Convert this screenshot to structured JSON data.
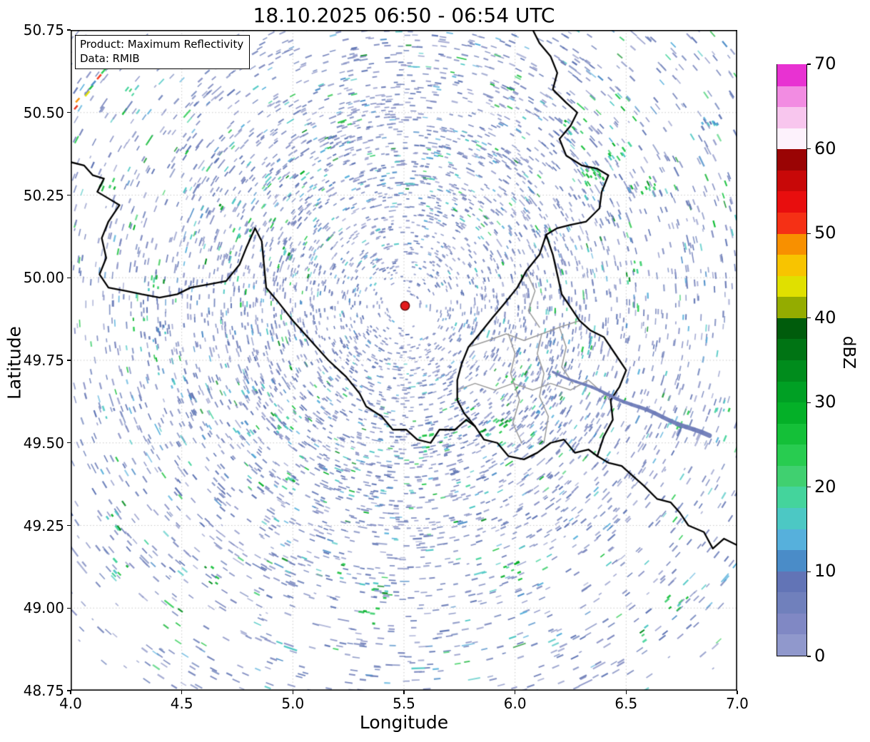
{
  "annotation": {
    "product": "Product: Maximum Reflectivity",
    "source": "Data: RMIB"
  },
  "chart_data": {
    "type": "heatmap",
    "title": "18.10.2025 06:50 - 06:54 UTC",
    "xlabel": "Longitude",
    "ylabel": "Latitude",
    "xlim": [
      4.0,
      7.0
    ],
    "ylim": [
      48.75,
      50.75
    ],
    "grid": "dotted",
    "xticks": [
      {
        "v": 4.0,
        "label": "4.0"
      },
      {
        "v": 4.5,
        "label": "4.5"
      },
      {
        "v": 5.0,
        "label": "5.0"
      },
      {
        "v": 5.5,
        "label": "5.5"
      },
      {
        "v": 6.0,
        "label": "6.0"
      },
      {
        "v": 6.5,
        "label": "6.5"
      },
      {
        "v": 7.0,
        "label": "7.0"
      }
    ],
    "yticks": [
      {
        "v": 48.75,
        "label": "48.75"
      },
      {
        "v": 49.0,
        "label": "49.00"
      },
      {
        "v": 49.25,
        "label": "49.25"
      },
      {
        "v": 49.5,
        "label": "49.50"
      },
      {
        "v": 49.75,
        "label": "49.75"
      },
      {
        "v": 50.0,
        "label": "50.00"
      },
      {
        "v": 50.25,
        "label": "50.25"
      },
      {
        "v": 50.5,
        "label": "50.50"
      },
      {
        "v": 50.75,
        "label": "50.75"
      }
    ],
    "colorbar": {
      "label": "dBZ",
      "min": 0,
      "max": 70,
      "ticks": [
        {
          "v": 0,
          "label": "0"
        },
        {
          "v": 10,
          "label": "10"
        },
        {
          "v": 20,
          "label": "20"
        },
        {
          "v": 30,
          "label": "30"
        },
        {
          "v": 40,
          "label": "40"
        },
        {
          "v": 50,
          "label": "50"
        },
        {
          "v": 60,
          "label": "60"
        },
        {
          "v": 70,
          "label": "70"
        }
      ],
      "colors": [
        "#9098cc",
        "#8088c4",
        "#7080bc",
        "#6274b6",
        "#4a8cc8",
        "#56b0dc",
        "#4cc8c4",
        "#44d49c",
        "#40d070",
        "#28cc50",
        "#14c038",
        "#04b028",
        "#00a024",
        "#008c1c",
        "#007414",
        "#005c0c",
        "#94ac00",
        "#e0e000",
        "#f8c400",
        "#f89000",
        "#f53015",
        "#e80e0e",
        "#c80808",
        "#9a0404",
        "#fdf2fc",
        "#f8c6ee",
        "#f28ce2",
        "#e832d2"
      ]
    },
    "radar_site": {
      "lon": 5.505,
      "lat": 49.915,
      "dot_color": "#e31a1c",
      "dot_edge": "#500000"
    },
    "interference_ray": {
      "from": [
        6.17,
        49.715
      ],
      "to": [
        6.875,
        49.52
      ],
      "color": "#6f7cb8"
    },
    "anomaly_streak": {
      "from": [
        4.02,
        50.52
      ],
      "to": [
        4.2,
        50.66
      ],
      "colors": [
        "#e83018",
        "#f89000",
        "#e0e000",
        "#14c038",
        "#4a8cc8",
        "#f53015",
        "#28cc50",
        "#f8c400",
        "#040404"
      ]
    },
    "echo": {
      "seed": 1337,
      "attempts": 26000,
      "max_r": 660,
      "background_dashes": 220,
      "base_colors": [
        "#8e96c8",
        "#7e8ac0",
        "#6e7eb8",
        "#5e74b4"
      ],
      "mid_colors": [
        "#4a8cc8",
        "#56b0dc",
        "#4cc8c4"
      ],
      "green_colors": [
        "#40d070",
        "#28cc50",
        "#14c038",
        "#04b028",
        "#008c1c"
      ],
      "teal_colors": [
        "#44d49c",
        "#4cc8c4"
      ],
      "random_clusters": 26
    },
    "clusters": [
      {
        "lon": 6.89,
        "lat": 50.47,
        "kind": "blue",
        "n": 12
      },
      {
        "lon": 6.35,
        "lat": 50.31,
        "kind": "green",
        "n": 14
      },
      {
        "lon": 6.47,
        "lat": 50.38,
        "kind": "green",
        "n": 10
      },
      {
        "lon": 6.27,
        "lat": 50.45,
        "kind": "green",
        "n": 8
      },
      {
        "lon": 6.62,
        "lat": 50.28,
        "kind": "green",
        "n": 7
      },
      {
        "lon": 6.55,
        "lat": 50.02,
        "kind": "green",
        "n": 6
      },
      {
        "lon": 6.74,
        "lat": 49.57,
        "kind": "green",
        "n": 8
      },
      {
        "lon": 5.94,
        "lat": 49.55,
        "kind": "green",
        "n": 8
      },
      {
        "lon": 5.6,
        "lat": 49.5,
        "kind": "green",
        "n": 6
      },
      {
        "lon": 4.95,
        "lat": 49.56,
        "kind": "green",
        "n": 6
      },
      {
        "lon": 4.17,
        "lat": 50.28,
        "kind": "green",
        "n": 5
      },
      {
        "lon": 4.2,
        "lat": 49.27,
        "kind": "green",
        "n": 6
      },
      {
        "lon": 4.62,
        "lat": 49.1,
        "kind": "green",
        "n": 5
      },
      {
        "lon": 6.73,
        "lat": 49.02,
        "kind": "green",
        "n": 7
      },
      {
        "lon": 6.58,
        "lat": 48.92,
        "kind": "green",
        "n": 4
      },
      {
        "lon": 5.22,
        "lat": 49.11,
        "kind": "green",
        "n": 4
      },
      {
        "lon": 4.3,
        "lat": 50.55,
        "kind": "green",
        "n": 4
      },
      {
        "lon": 6.93,
        "lat": 49.61,
        "kind": "green",
        "n": 5
      }
    ],
    "borders": {
      "country": [
        [
          [
            4.0,
            50.35
          ],
          [
            4.06,
            50.34
          ],
          [
            4.1,
            50.31
          ],
          [
            4.15,
            50.3
          ],
          [
            4.12,
            50.26
          ],
          [
            4.17,
            50.24
          ],
          [
            4.22,
            50.22
          ],
          [
            4.17,
            50.17
          ],
          [
            4.14,
            50.12
          ],
          [
            4.16,
            50.06
          ],
          [
            4.13,
            50.01
          ],
          [
            4.17,
            49.97
          ],
          [
            4.25,
            49.96
          ],
          [
            4.32,
            49.95
          ],
          [
            4.4,
            49.94
          ],
          [
            4.48,
            49.95
          ],
          [
            4.54,
            49.97
          ],
          [
            4.62,
            49.98
          ],
          [
            4.7,
            49.99
          ],
          [
            4.76,
            50.04
          ],
          [
            4.79,
            50.09
          ],
          [
            4.83,
            50.15
          ],
          [
            4.86,
            50.11
          ],
          [
            4.87,
            50.04
          ],
          [
            4.88,
            49.97
          ],
          [
            4.93,
            49.93
          ],
          [
            5.0,
            49.87
          ],
          [
            5.08,
            49.81
          ],
          [
            5.16,
            49.75
          ],
          [
            5.24,
            49.7
          ],
          [
            5.3,
            49.65
          ],
          [
            5.33,
            49.61
          ],
          [
            5.4,
            49.58
          ],
          [
            5.45,
            49.54
          ],
          [
            5.51,
            49.54
          ],
          [
            5.56,
            49.51
          ],
          [
            5.62,
            49.5
          ],
          [
            5.66,
            49.54
          ],
          [
            5.73,
            49.54
          ],
          [
            5.78,
            49.57
          ],
          [
            5.82,
            49.55
          ]
        ],
        [
          [
            6.08,
            50.75
          ],
          [
            6.11,
            50.71
          ],
          [
            6.16,
            50.67
          ],
          [
            6.19,
            50.62
          ],
          [
            6.17,
            50.57
          ],
          [
            6.23,
            50.53
          ],
          [
            6.28,
            50.5
          ],
          [
            6.25,
            50.46
          ],
          [
            6.2,
            50.42
          ],
          [
            6.23,
            50.37
          ],
          [
            6.3,
            50.34
          ],
          [
            6.37,
            50.33
          ],
          [
            6.42,
            50.31
          ],
          [
            6.39,
            50.26
          ],
          [
            6.38,
            50.21
          ],
          [
            6.32,
            50.17
          ],
          [
            6.25,
            50.16
          ],
          [
            6.19,
            50.15
          ],
          [
            6.14,
            50.13
          ]
        ],
        [
          [
            6.14,
            50.13
          ],
          [
            6.11,
            50.07
          ],
          [
            6.05,
            50.02
          ],
          [
            6.01,
            49.97
          ],
          [
            5.95,
            49.92
          ],
          [
            5.9,
            49.88
          ],
          [
            5.84,
            49.83
          ],
          [
            5.79,
            49.79
          ],
          [
            5.76,
            49.74
          ],
          [
            5.74,
            49.69
          ],
          [
            5.74,
            49.63
          ],
          [
            5.77,
            49.59
          ],
          [
            5.82,
            49.55
          ]
        ],
        [
          [
            5.82,
            49.55
          ],
          [
            5.86,
            49.51
          ],
          [
            5.92,
            49.5
          ],
          [
            5.97,
            49.46
          ],
          [
            6.04,
            49.45
          ],
          [
            6.1,
            49.47
          ],
          [
            6.16,
            49.5
          ],
          [
            6.22,
            49.51
          ],
          [
            6.27,
            49.47
          ],
          [
            6.33,
            49.48
          ],
          [
            6.37,
            49.46
          ]
        ],
        [
          [
            6.37,
            49.46
          ],
          [
            6.4,
            49.52
          ],
          [
            6.44,
            49.57
          ],
          [
            6.43,
            49.63
          ],
          [
            6.47,
            49.67
          ],
          [
            6.5,
            49.72
          ],
          [
            6.45,
            49.77
          ],
          [
            6.4,
            49.82
          ],
          [
            6.34,
            49.84
          ],
          [
            6.29,
            49.87
          ],
          [
            6.25,
            49.91
          ],
          [
            6.21,
            49.95
          ],
          [
            6.19,
            50.01
          ],
          [
            6.17,
            50.07
          ],
          [
            6.14,
            50.13
          ]
        ],
        [
          [
            6.37,
            49.46
          ],
          [
            6.42,
            49.44
          ],
          [
            6.48,
            49.43
          ],
          [
            6.53,
            49.4
          ],
          [
            6.58,
            49.37
          ],
          [
            6.64,
            49.33
          ],
          [
            6.7,
            49.32
          ],
          [
            6.74,
            49.29
          ],
          [
            6.78,
            49.25
          ],
          [
            6.85,
            49.23
          ],
          [
            6.89,
            49.18
          ],
          [
            6.94,
            49.21
          ],
          [
            7.0,
            49.19
          ]
        ]
      ],
      "admin": [
        [
          [
            5.79,
            49.79
          ],
          [
            5.88,
            49.81
          ],
          [
            5.96,
            49.83
          ],
          [
            6.04,
            49.81
          ],
          [
            6.12,
            49.83
          ],
          [
            6.2,
            49.85
          ],
          [
            6.29,
            49.87
          ]
        ],
        [
          [
            5.74,
            49.66
          ],
          [
            5.82,
            49.68
          ],
          [
            5.91,
            49.66
          ],
          [
            5.99,
            49.68
          ],
          [
            6.08,
            49.66
          ],
          [
            6.16,
            49.68
          ],
          [
            6.25,
            49.66
          ],
          [
            6.33,
            49.69
          ],
          [
            6.43,
            49.63
          ]
        ],
        [
          [
            5.97,
            49.83
          ],
          [
            6.0,
            49.77
          ],
          [
            5.98,
            49.71
          ],
          [
            6.02,
            49.63
          ],
          [
            5.99,
            49.56
          ],
          [
            6.03,
            49.5
          ]
        ],
        [
          [
            6.12,
            49.83
          ],
          [
            6.1,
            49.77
          ],
          [
            6.13,
            49.71
          ],
          [
            6.11,
            49.64
          ],
          [
            6.15,
            49.58
          ],
          [
            6.13,
            49.5
          ]
        ],
        [
          [
            6.05,
            50.02
          ],
          [
            6.09,
            49.96
          ],
          [
            6.06,
            49.9
          ],
          [
            6.11,
            49.85
          ]
        ],
        [
          [
            6.2,
            49.85
          ],
          [
            6.23,
            49.79
          ],
          [
            6.21,
            49.73
          ],
          [
            6.26,
            49.68
          ]
        ]
      ]
    }
  },
  "colors": {
    "border": "#000000",
    "admin_border": "#9a9a9a",
    "grid": "#c3c3c3",
    "frame": "#000000"
  }
}
